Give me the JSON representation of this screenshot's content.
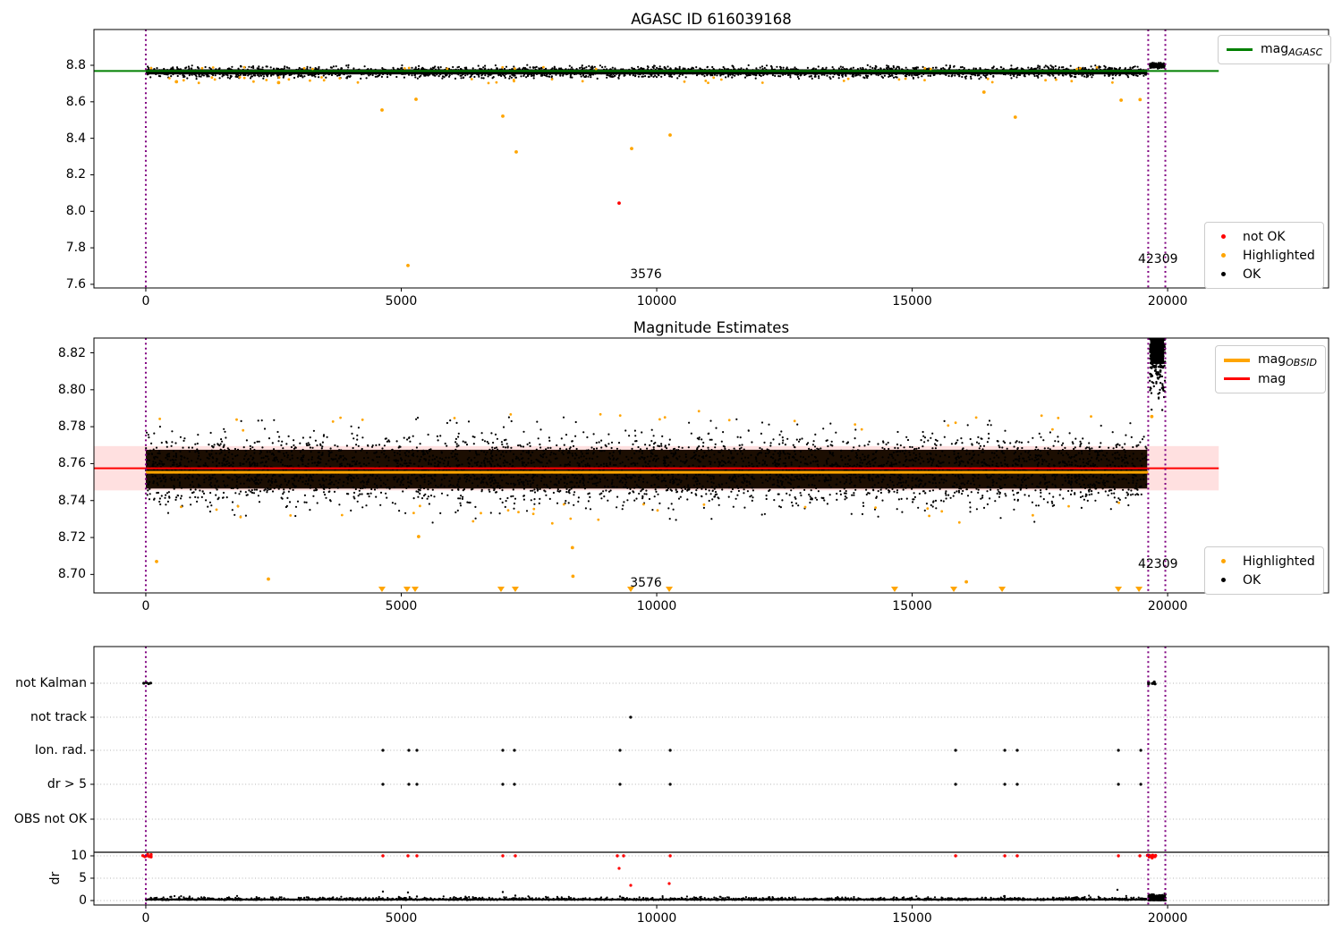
{
  "colors": {
    "ok": "#000000",
    "highlighted": "#ffa500",
    "not_ok": "#ff0000",
    "mag_agasc": "#008000",
    "mag_obsid": "#ffa500",
    "mag": "#ff0000",
    "vline": "#800080",
    "band_fill": "rgba(255,0,0,0.12)",
    "grid": "#b5b5b5"
  },
  "chart_data": [
    {
      "type": "scatter",
      "title": "AGASC ID 616039168",
      "xlim": [
        -1015,
        23150
      ],
      "ylim": [
        7.58,
        8.996
      ],
      "xticks": [
        {
          "v": 0,
          "label": "0"
        },
        {
          "v": 5000,
          "label": "5000"
        },
        {
          "v": 10000,
          "label": "10000"
        },
        {
          "v": 15000,
          "label": "15000"
        },
        {
          "v": 20000,
          "label": "20000"
        }
      ],
      "yticks": [
        {
          "v": 7.6,
          "label": "7.6"
        },
        {
          "v": 7.8,
          "label": "7.8"
        },
        {
          "v": 8.0,
          "label": "8.0"
        },
        {
          "v": 8.2,
          "label": "8.2"
        },
        {
          "v": 8.4,
          "label": "8.4"
        },
        {
          "v": 8.6,
          "label": "8.6"
        },
        {
          "v": 8.8,
          "label": "8.8"
        }
      ],
      "vlines": [
        0,
        19620,
        19955
      ],
      "hlines": [
        {
          "y": 8.769,
          "x0": -1015,
          "x1": 21000,
          "color_key": "mag_agasc",
          "w": 2
        }
      ],
      "core_rects": [
        {
          "x0": 0,
          "x1": 19600,
          "y0": 8.75,
          "y1": 8.778,
          "color": "#000000"
        },
        {
          "x0": 19670,
          "x1": 19920,
          "y0": 8.789,
          "y1": 8.809,
          "color": "#000000"
        }
      ],
      "ok_clusters": [
        {
          "x0": 0,
          "x1": 19600,
          "yc": 8.763,
          "sigma": 0.016,
          "ymin": 8.726,
          "ymax": 8.802,
          "n": 2600,
          "seed": 11,
          "r": 1.1
        },
        {
          "x0": 19650,
          "x1": 19940,
          "yc": 8.799,
          "sigma": 0.006,
          "ymin": 8.777,
          "ymax": 8.8145,
          "n": 200,
          "seed": 12,
          "clamp": true,
          "r": 1.2
        }
      ],
      "highlighted_clusters": [
        {
          "x0": 100,
          "x1": 19550,
          "yc": 8.718,
          "sigma": 0.011,
          "ymin": 8.7,
          "ymax": 8.737,
          "n": 40,
          "seed": 13,
          "r": 1.4
        },
        {
          "x0": 100,
          "x1": 19550,
          "yc": 8.785,
          "sigma": 0.004,
          "ymin": 8.779,
          "ymax": 8.791,
          "n": 18,
          "seed": 14,
          "r": 1.4
        }
      ],
      "highlighted_points": [
        [
          4623,
          8.555
        ],
        [
          5289,
          8.614
        ],
        [
          5131,
          7.703
        ],
        [
          6988,
          8.521
        ],
        [
          7250,
          8.325
        ],
        [
          9509,
          8.344
        ],
        [
          10262,
          8.418
        ],
        [
          16405,
          8.653
        ],
        [
          17018,
          8.516
        ],
        [
          19089,
          8.609
        ],
        [
          19460,
          8.612
        ],
        [
          600,
          8.71
        ],
        [
          2600,
          8.705
        ]
      ],
      "not_ok_points": [
        [
          9264,
          8.045
        ]
      ],
      "annotations": [
        {
          "text": "3576",
          "x": 9790,
          "y": 7.653
        },
        {
          "text": "42309",
          "x": 19810,
          "y": 7.737
        }
      ],
      "legend_lines": [
        {
          "label": "mag",
          "sub": "AGASC",
          "color_key": "mag_agasc"
        }
      ],
      "legend_markers": [
        {
          "label": "not OK",
          "color_key": "not_ok"
        },
        {
          "label": "Highlighted",
          "color_key": "highlighted"
        },
        {
          "label": "OK",
          "color_key": "ok"
        }
      ]
    },
    {
      "type": "scatter",
      "title": "Magnitude Estimates",
      "xlim": [
        -1015,
        23150
      ],
      "ylim": [
        8.69,
        8.828
      ],
      "xticks": [
        {
          "v": 0,
          "label": "0"
        },
        {
          "v": 5000,
          "label": "5000"
        },
        {
          "v": 10000,
          "label": "10000"
        },
        {
          "v": 15000,
          "label": "15000"
        },
        {
          "v": 20000,
          "label": "20000"
        }
      ],
      "yticks": [
        {
          "v": 8.7,
          "label": "8.70"
        },
        {
          "v": 8.72,
          "label": "8.72"
        },
        {
          "v": 8.74,
          "label": "8.74"
        },
        {
          "v": 8.76,
          "label": "8.76"
        },
        {
          "v": 8.78,
          "label": "8.78"
        },
        {
          "v": 8.8,
          "label": "8.80"
        },
        {
          "v": 8.82,
          "label": "8.82"
        }
      ],
      "vlines": [
        0,
        19620,
        19955
      ],
      "band_fill": {
        "y0": 8.7455,
        "y1": 8.7695,
        "x0": -1015,
        "x1": 21000
      },
      "hlines": [
        {
          "y": 8.7575,
          "x0": -1015,
          "x1": 21000,
          "color_key": "mag",
          "w": 2
        },
        {
          "y": 8.7553,
          "x0": 0,
          "x1": 19620,
          "color_key": "mag_obsid",
          "w": 3
        }
      ],
      "core_rects": [
        {
          "x0": 0,
          "x1": 19600,
          "y0": 8.7465,
          "y1": 8.7675,
          "color": "#1c0e02"
        },
        {
          "x0": 19660,
          "x1": 19930,
          "y0": 8.814,
          "y1": 8.8275,
          "color": "#000000"
        }
      ],
      "ok_clusters": [
        {
          "x0": 0,
          "x1": 19600,
          "yc": 8.757,
          "sigma": 0.0095,
          "ymin": 8.7275,
          "ymax": 8.7865,
          "n": 4200,
          "seed": 21,
          "r": 1.1
        },
        {
          "x0": 19650,
          "x1": 19950,
          "yc": 8.8235,
          "sigma": 0.011,
          "ymin": 8.789,
          "ymax": 8.8275,
          "n": 380,
          "seed": 22,
          "clamp": true,
          "r": 1.2
        }
      ],
      "highlighted_clusters": [
        {
          "x0": 100,
          "x1": 19550,
          "yc": 8.7835,
          "sigma": 0.0035,
          "ymin": 8.777,
          "ymax": 8.7885,
          "n": 24,
          "seed": 23,
          "r": 1.4
        },
        {
          "x0": 100,
          "x1": 19550,
          "yc": 8.7335,
          "sigma": 0.004,
          "ymin": 8.7255,
          "ymax": 8.742,
          "n": 30,
          "seed": 24,
          "r": 1.4
        }
      ],
      "highlighted_points": [
        [
          210,
          8.707
        ],
        [
          2400,
          8.6975
        ],
        [
          5340,
          8.7205
        ],
        [
          8350,
          8.7145
        ],
        [
          8360,
          8.699
        ],
        [
          16060,
          8.696
        ],
        [
          19690,
          8.7855
        ]
      ],
      "clipped_low_x": [
        4623,
        5113,
        5271,
        6952,
        7232,
        9492,
        10245,
        14657,
        15814,
        16760,
        19036,
        19439
      ],
      "annotations": [
        {
          "text": "3576",
          "x": 9790,
          "y": 8.6955
        },
        {
          "text": "42309",
          "x": 19810,
          "y": 8.7055
        }
      ],
      "legend_lines": [
        {
          "label": "mag",
          "sub": "OBSID",
          "color_key": "mag_obsid"
        },
        {
          "label": "mag",
          "sub": "",
          "color_key": "mag"
        }
      ],
      "legend_markers": [
        {
          "label": "Highlighted",
          "color_key": "highlighted"
        },
        {
          "label": "OK",
          "color_key": "ok"
        }
      ]
    },
    {
      "type": "flags",
      "title": "",
      "xlim": [
        -1015,
        23150
      ],
      "ylim": [
        -1.0,
        56.8
      ],
      "xticks": [
        {
          "v": 0,
          "label": "0"
        },
        {
          "v": 5000,
          "label": "5000"
        },
        {
          "v": 10000,
          "label": "10000"
        },
        {
          "v": 15000,
          "label": "15000"
        },
        {
          "v": 20000,
          "label": "20000"
        }
      ],
      "categories": [
        {
          "label": "not Kalman",
          "v": 48.6
        },
        {
          "label": "not track",
          "v": 41.0
        },
        {
          "label": "Ion. rad.",
          "v": 33.6
        },
        {
          "label": "dr > 5",
          "v": 26.0
        },
        {
          "label": "OBS not OK",
          "v": 18.2
        }
      ],
      "dr_ticks": [
        {
          "v": 10,
          "label": "10"
        },
        {
          "v": 5,
          "label": "5"
        },
        {
          "v": 0,
          "label": "0"
        }
      ],
      "ylabel": "dr",
      "vlines": [
        0,
        19620,
        19955
      ],
      "hline_solid": 10.8,
      "flags_ok": {
        "not_kalman_points": [
          [
            -40,
            48.6
          ],
          [
            10,
            48.75
          ],
          [
            55,
            48.5
          ],
          [
            95,
            48.65
          ]
        ],
        "not_kalman_cluster": {
          "x0": 19620,
          "x1": 19760,
          "yc": 48.6,
          "sigma": 0.25,
          "ymin": 48.0,
          "ymax": 49.2,
          "n": 10,
          "seed": 31,
          "r": 1.6
        },
        "not_track_points": [
          [
            9490,
            41.0
          ]
        ],
        "ion_rad_x": [
          4641,
          5149,
          5306,
          6988,
          7215,
          9282,
          10263,
          15849,
          16812,
          17057,
          19036,
          19474
        ],
        "dr_gt5_x": [
          4641,
          5149,
          5306,
          6988,
          7215,
          9282,
          10263,
          15849,
          16812,
          17057,
          19036,
          19474
        ]
      },
      "dr_not_ok": {
        "dr10_x": [
          4641,
          5131,
          5306,
          6988,
          7232,
          9229,
          9351,
          10263,
          15849,
          16812,
          17057,
          19036,
          19457
        ],
        "clusters": [
          {
            "x0": -60,
            "x1": 130,
            "yc": 10.0,
            "sigma": 0.22,
            "ymin": 9.5,
            "ymax": 10.5,
            "n": 8,
            "seed": 32,
            "r": 1.7
          },
          {
            "x0": 19600,
            "x1": 19770,
            "yc": 9.95,
            "sigma": 0.25,
            "ymin": 9.4,
            "ymax": 10.5,
            "n": 14,
            "seed": 33,
            "r": 1.7
          }
        ],
        "points": [
          [
            9264,
            7.2
          ],
          [
            9491,
            3.4
          ],
          [
            10245,
            3.8
          ]
        ]
      },
      "dr_ok": {
        "core_rects": [
          {
            "x0": 0,
            "x1": 19600,
            "y0": 0.02,
            "y1": 0.45,
            "color": "#0a0a0a"
          },
          {
            "x0": 19640,
            "x1": 19940,
            "y0": 0.1,
            "y1": 0.8,
            "color": "#000000"
          }
        ],
        "band": {
          "x0": 0,
          "x1": 19600,
          "yc": 0.1,
          "sigma": 0.3,
          "ymin": 0.0,
          "ymax": 1.5,
          "n": 1500,
          "seed": 34,
          "abs": true,
          "r": 1.1
        },
        "cluster": {
          "x0": 19620,
          "x1": 19960,
          "yc": 0.55,
          "sigma": 0.38,
          "ymin": 0.05,
          "ymax": 2.0,
          "n": 300,
          "seed": 35,
          "clamp": true,
          "r": 1.2
        },
        "sparse_points": [
          [
            4641,
            2.0
          ],
          [
            5131,
            1.8
          ],
          [
            5306,
            0.9
          ],
          [
            6988,
            1.9
          ],
          [
            7232,
            1.1
          ],
          [
            9282,
            0.9
          ],
          [
            16810,
            1.0
          ],
          [
            19018,
            2.4
          ]
        ]
      }
    }
  ]
}
